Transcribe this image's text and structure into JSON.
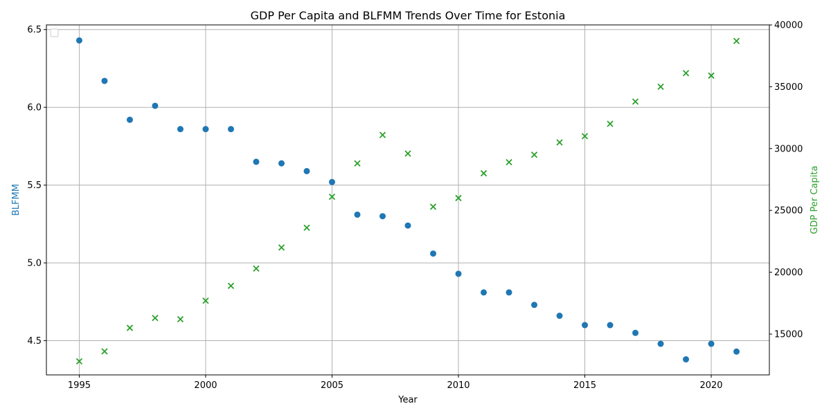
{
  "chart_data": {
    "type": "scatter",
    "title": "GDP Per Capita and BLFMM Trends Over Time for Estonia",
    "xlabel": "Year",
    "ylabel_left": "BLFMM",
    "ylabel_right": "GDP Per Capita",
    "xlim": [
      1993.7,
      2022.3
    ],
    "ylim_left": [
      4.28,
      6.53
    ],
    "ylim_right": [
      11700,
      40000
    ],
    "x_ticks": [
      1995,
      2000,
      2005,
      2010,
      2015,
      2020
    ],
    "y_left_ticks": [
      4.5,
      5.0,
      5.5,
      6.0,
      6.5
    ],
    "y_left_tick_labels": [
      "4.5",
      "5.0",
      "5.5",
      "6.0",
      "6.5"
    ],
    "y_right_ticks": [
      15000,
      20000,
      25000,
      30000,
      35000,
      40000
    ],
    "grid": true,
    "legend": {
      "placement": "upper-left",
      "entries": []
    },
    "series": [
      {
        "axis": "left",
        "marker": "circle",
        "color": "#1f77b4",
        "x": [
          1995,
          1996,
          1997,
          1998,
          1999,
          2000,
          2001,
          2002,
          2003,
          2004,
          2005,
          2006,
          2007,
          2008,
          2009,
          2010,
          2011,
          2012,
          2013,
          2014,
          2015,
          2016,
          2017,
          2018,
          2019,
          2020,
          2021
        ],
        "y": [
          6.43,
          6.17,
          5.92,
          6.01,
          5.86,
          5.86,
          5.86,
          5.65,
          5.64,
          5.59,
          5.52,
          5.31,
          5.3,
          5.24,
          5.06,
          4.93,
          4.81,
          4.81,
          4.73,
          4.66,
          4.6,
          4.6,
          4.55,
          4.48,
          4.38,
          4.48,
          4.43
        ]
      },
      {
        "axis": "right",
        "marker": "x",
        "color": "#2ca02c",
        "x": [
          1995,
          1996,
          1997,
          1998,
          1999,
          2000,
          2001,
          2002,
          2003,
          2004,
          2005,
          2006,
          2007,
          2008,
          2009,
          2010,
          2011,
          2012,
          2013,
          2014,
          2015,
          2016,
          2017,
          2018,
          2019,
          2020,
          2021
        ],
        "y": [
          12800,
          13600,
          15500,
          16300,
          16200,
          17700,
          18900,
          20300,
          22000,
          23600,
          26100,
          28800,
          31100,
          29600,
          25300,
          26000,
          28000,
          28900,
          29500,
          30500,
          31000,
          32000,
          33800,
          35000,
          36100,
          35900,
          38700
        ]
      }
    ]
  }
}
